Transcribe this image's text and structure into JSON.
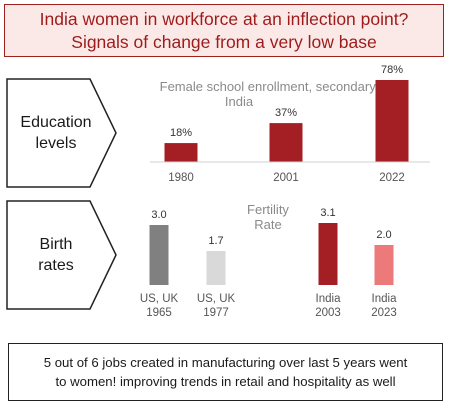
{
  "header": {
    "title_line1": "India women in workforce at an inflection point?",
    "title_line2": "Signals of change from a very low base"
  },
  "education": {
    "label_line1": "Education",
    "label_line2": "levels"
  },
  "birth": {
    "label_line1": "Birth",
    "label_line2": "rates"
  },
  "footer": {
    "line1": "5 out of 6 jobs created in manufacturing over last 5 years went",
    "line2": "to women! improving trends in retail and hospitality as well"
  },
  "colors": {
    "title_red": "#9e1b1b",
    "bar_red": "#a31f24",
    "bar_gray": "#808080",
    "bar_light_gray": "#d9d9d9",
    "bar_pink": "#ec7a7a"
  },
  "chart_data": [
    {
      "type": "bar",
      "title_line1": "Female school enrollment, secondary,",
      "title_line2": "India",
      "categories": [
        "1980",
        "2001",
        "2022"
      ],
      "values": [
        18,
        37,
        78
      ],
      "value_labels": [
        "18%",
        "37%",
        "78%"
      ],
      "ylim": [
        0,
        100
      ],
      "colors": [
        "#a31f24",
        "#a31f24",
        "#a31f24"
      ]
    },
    {
      "type": "bar",
      "title_line1": "Fertility",
      "title_line2": "Rate",
      "categories": [
        [
          "US, UK",
          "1965"
        ],
        [
          "US, UK",
          "1977"
        ],
        [
          "India",
          "2003"
        ],
        [
          "India",
          "2023"
        ]
      ],
      "values": [
        3.0,
        1.7,
        3.1,
        2.0
      ],
      "value_labels": [
        "3.0",
        "1.7",
        "3.1",
        "2.0"
      ],
      "ylim": [
        0,
        3.5
      ],
      "colors": [
        "#808080",
        "#d9d9d9",
        "#a31f24",
        "#ec7a7a"
      ]
    }
  ]
}
